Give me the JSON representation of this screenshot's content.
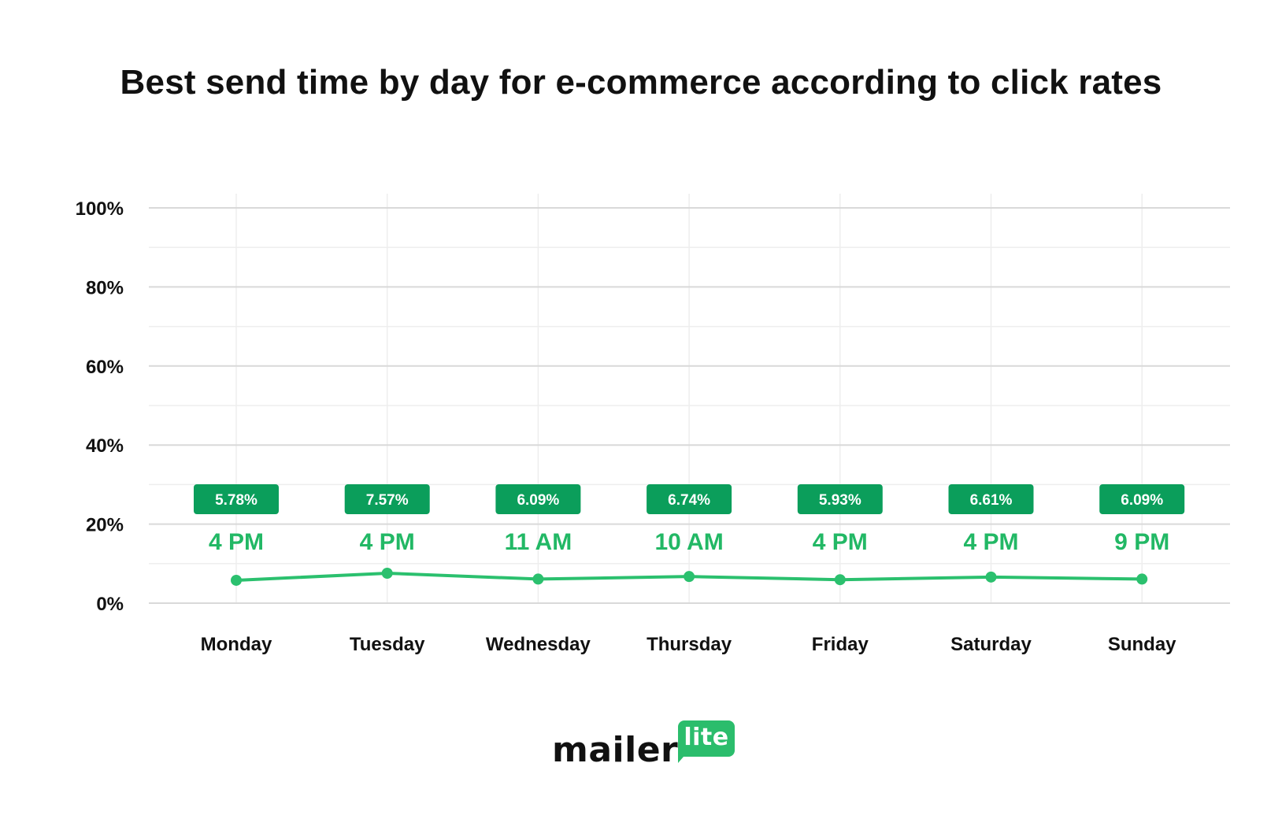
{
  "chart_data": {
    "type": "line",
    "title": "Best send time by day for e-commerce according to click rates",
    "categories": [
      "Monday",
      "Tuesday",
      "Wednesday",
      "Thursday",
      "Friday",
      "Saturday",
      "Sunday"
    ],
    "series": [
      {
        "values": [
          5.78,
          7.57,
          6.09,
          6.74,
          5.93,
          6.61,
          6.09
        ],
        "value_labels": [
          "5.78%",
          "7.57%",
          "6.09%",
          "6.74%",
          "5.93%",
          "6.61%",
          "6.09%"
        ],
        "best_times": [
          "4 PM",
          "4 PM",
          "11 AM",
          "10 AM",
          "4 PM",
          "4 PM",
          "9 PM"
        ]
      }
    ],
    "y_ticks": [
      "0%",
      "20%",
      "40%",
      "60%",
      "80%",
      "100%"
    ],
    "ylim": [
      0,
      100
    ],
    "grid": true,
    "legend": "none",
    "colors": {
      "line": "#2bc06e",
      "label_bg": "#0b9e5b",
      "time_text": "#22b865",
      "grid_major": "#d9d9d9",
      "grid_minor": "#eeeeee"
    }
  },
  "logo": {
    "word": "mailer",
    "badge": "lite"
  }
}
